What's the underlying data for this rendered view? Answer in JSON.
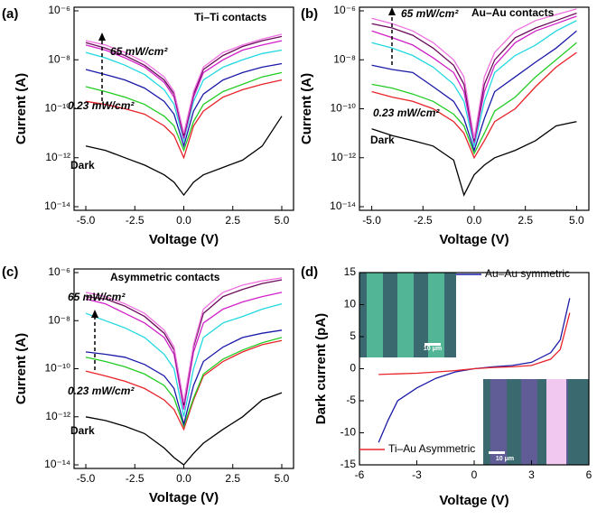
{
  "chart_data": [
    {
      "type": "line",
      "panel_label": "(a)",
      "xlabel": "Voltage (V)",
      "ylabel": "Current (A)",
      "log_y": true,
      "annotations": [
        "Ti–Ti contacts",
        "65 mW/cm²",
        "0.23 mW/cm²",
        "Dark"
      ],
      "xlim": [
        -5.6,
        5.6
      ],
      "ylim": [
        1e-14,
        1e-06
      ],
      "xticks": [
        {
          "value": -5,
          "label": "-5.0"
        },
        -2.5,
        {
          "value": 0,
          "label": "0.0"
        },
        2.5,
        {
          "value": 5,
          "label": "5.0"
        }
      ],
      "yticks": [
        {
          "value": 1e-06,
          "label": "10⁻⁶"
        },
        {
          "value": 1e-08,
          "label": "10⁻⁸"
        },
        {
          "value": 1e-10,
          "label": "10⁻¹⁰"
        },
        {
          "value": 1e-12,
          "label": "10⁻¹²"
        },
        {
          "value": 1e-14,
          "label": "10⁻¹⁴"
        }
      ],
      "x": [
        -5,
        -4,
        -3,
        -2,
        -1,
        -0.5,
        0,
        0.5,
        1,
        2,
        3,
        4,
        5
      ],
      "series": [
        {
          "color": "#000000",
          "values": [
            3e-12,
            2e-12,
            1e-12,
            5e-13,
            2e-13,
            1e-13,
            3e-14,
            1e-13,
            2e-13,
            4e-13,
            8e-13,
            3e-12,
            5e-11
          ]
        },
        {
          "color": "#e8232a",
          "values": [
            2e-10,
            1.5e-10,
            1e-10,
            6e-11,
            2e-11,
            8e-12,
            1e-12,
            2e-11,
            8e-11,
            3e-10,
            6e-10,
            1e-09,
            1.5e-09
          ]
        },
        {
          "color": "#22cc22",
          "values": [
            8e-10,
            5e-10,
            3e-10,
            1.5e-10,
            5e-11,
            2e-11,
            2e-12,
            3e-11,
            1.5e-10,
            5e-10,
            1e-09,
            2e-09,
            3e-09
          ]
        },
        {
          "color": "#1a1aa8",
          "values": [
            4e-09,
            2.5e-09,
            1.5e-09,
            7e-10,
            2e-10,
            6e-11,
            3e-12,
            8e-11,
            4e-10,
            1.5e-09,
            3e-09,
            5e-09,
            7e-09
          ]
        },
        {
          "color": "#22d8e0",
          "values": [
            2e-08,
            1.2e-08,
            6e-09,
            2.5e-09,
            6e-10,
            1.5e-10,
            5e-12,
            2e-10,
            1.5e-09,
            5e-09,
            1e-08,
            1.8e-08,
            2.5e-08
          ]
        },
        {
          "color": "#d020c8",
          "values": [
            4e-08,
            2.5e-08,
            1.2e-08,
            5e-09,
            1.2e-09,
            3e-10,
            6e-12,
            3e-10,
            3e-09,
            1e-08,
            2.5e-08,
            4e-08,
            6e-08
          ]
        },
        {
          "color": "#6a0a5a",
          "values": [
            5e-08,
            3e-08,
            1.5e-08,
            6e-09,
            1.5e-09,
            4e-10,
            8e-12,
            4e-10,
            4e-09,
            1.5e-08,
            3.5e-08,
            6e-08,
            9e-08
          ]
        },
        {
          "color": "#f070e0",
          "values": [
            6e-08,
            4e-08,
            2e-08,
            8e-09,
            2e-09,
            5e-10,
            1e-11,
            5e-10,
            5e-09,
            2e-08,
            4e-08,
            7e-08,
            1.1e-07
          ]
        }
      ]
    },
    {
      "type": "line",
      "panel_label": "(b)",
      "xlabel": "Voltage (V)",
      "ylabel": "Current (A)",
      "log_y": true,
      "annotations": [
        "Au–Au contacts",
        "65 mW/cm²",
        "0.23 mW/cm²",
        "Dark"
      ],
      "xlim": [
        -5.6,
        5.6
      ],
      "ylim": [
        1e-14,
        1e-06
      ],
      "xticks": [
        {
          "value": -5,
          "label": "-5.0"
        },
        -2.5,
        {
          "value": 0,
          "label": "0.0"
        },
        2.5,
        {
          "value": 5,
          "label": "5.0"
        }
      ],
      "yticks": [
        {
          "value": 1e-06,
          "label": "10⁻⁶"
        },
        {
          "value": 1e-08,
          "label": "10⁻⁸"
        },
        {
          "value": 1e-10,
          "label": "10⁻¹⁰"
        },
        {
          "value": 1e-12,
          "label": "10⁻¹²"
        },
        {
          "value": 1e-14,
          "label": "10⁻¹⁴"
        }
      ],
      "x": [
        -5,
        -4,
        -3,
        -2,
        -1,
        -0.5,
        0,
        0.5,
        1,
        2,
        3,
        4,
        5
      ],
      "series": [
        {
          "color": "#000000",
          "values": [
            1.5e-11,
            8e-12,
            5e-12,
            3e-12,
            8e-13,
            3e-14,
            2e-13,
            5e-13,
            1e-12,
            2e-12,
            5e-12,
            2e-11,
            3e-11
          ]
        },
        {
          "color": "#e8232a",
          "values": [
            5e-10,
            3e-10,
            2e-10,
            1e-10,
            3e-11,
            1e-11,
            1e-12,
            5e-12,
            3e-11,
            1e-10,
            8e-10,
            5e-09,
            2e-08
          ]
        },
        {
          "color": "#22cc22",
          "values": [
            1e-09,
            7e-10,
            4e-10,
            2e-10,
            6e-11,
            2e-11,
            1.5e-12,
            1e-11,
            8e-11,
            3e-10,
            2e-09,
            1e-08,
            5e-08
          ]
        },
        {
          "color": "#1a1aa8",
          "values": [
            6e-09,
            4e-09,
            3e-09,
            8e-10,
            2e-10,
            4e-11,
            2e-12,
            4e-11,
            5e-10,
            2e-09,
            8e-09,
            3e-08,
            1.5e-07
          ]
        },
        {
          "color": "#22d8e0",
          "values": [
            5e-08,
            3e-08,
            1.5e-08,
            5e-09,
            1e-09,
            2e-10,
            3e-12,
            2e-10,
            3e-09,
            1.5e-08,
            4e-08,
            1.5e-07,
            4e-07
          ]
        },
        {
          "color": "#d020c8",
          "values": [
            1.5e-07,
            8e-08,
            4e-08,
            1.2e-08,
            3e-09,
            5e-10,
            4e-12,
            5e-10,
            6e-09,
            5e-08,
            1.5e-07,
            3e-07,
            6e-07
          ]
        },
        {
          "color": "#6a0a5a",
          "values": [
            3e-07,
            2e-07,
            1e-07,
            3e-08,
            6e-09,
            1e-09,
            5e-12,
            1e-09,
            1e-08,
            8e-08,
            2e-07,
            4e-07,
            8e-07
          ]
        },
        {
          "color": "#f070e0",
          "values": [
            5e-07,
            3e-07,
            1.5e-07,
            5e-08,
            1e-08,
            2e-09,
            6e-12,
            2e-09,
            2e-08,
            1.5e-07,
            4e-07,
            7e-07,
            1.2e-06
          ]
        }
      ]
    },
    {
      "type": "line",
      "panel_label": "(c)",
      "xlabel": "Voltage (V)",
      "ylabel": "Current (A)",
      "log_y": true,
      "annotations": [
        "Asymmetric contacts",
        "65 mW/cm²",
        "0.23 mW/cm²",
        "Dark"
      ],
      "xlim": [
        -5.6,
        5.6
      ],
      "ylim": [
        1e-14,
        1e-06
      ],
      "xticks": [
        {
          "value": -5,
          "label": "-5.0"
        },
        -2.5,
        {
          "value": 0,
          "label": "0.0"
        },
        2.5,
        {
          "value": 5,
          "label": "5.0"
        }
      ],
      "yticks": [
        {
          "value": 1e-06,
          "label": "10⁻⁶"
        },
        {
          "value": 1e-08,
          "label": "10⁻⁸"
        },
        {
          "value": 1e-10,
          "label": "10⁻¹⁰"
        },
        {
          "value": 1e-12,
          "label": "10⁻¹²"
        },
        {
          "value": 1e-14,
          "label": "10⁻¹⁴"
        }
      ],
      "x": [
        -5,
        -4,
        -3,
        -2,
        -1,
        -0.5,
        0,
        0.5,
        1,
        2,
        3,
        4,
        5
      ],
      "series": [
        {
          "color": "#000000",
          "values": [
            1e-12,
            7e-13,
            4e-13,
            2e-13,
            5e-14,
            2e-14,
            1e-14,
            3e-14,
            8e-14,
            3e-13,
            1e-12,
            5e-12,
            1e-11
          ]
        },
        {
          "color": "#e8232a",
          "values": [
            8e-11,
            5e-11,
            3e-11,
            1.5e-11,
            5e-12,
            2e-12,
            3e-13,
            5e-12,
            5e-11,
            2e-10,
            5e-10,
            1e-09,
            1.5e-09
          ]
        },
        {
          "color": "#22cc22",
          "values": [
            3e-10,
            2e-10,
            1.2e-10,
            6e-11,
            2e-11,
            6e-12,
            4e-13,
            6e-12,
            6e-11,
            2.5e-10,
            6e-10,
            1.2e-09,
            2e-09
          ]
        },
        {
          "color": "#1a1aa8",
          "values": [
            5e-10,
            4e-10,
            3e-10,
            1.5e-10,
            5e-11,
            1.5e-11,
            5e-13,
            2e-11,
            2e-10,
            8e-10,
            2e-09,
            3e-09,
            4e-09
          ]
        },
        {
          "color": "#22d8e0",
          "values": [
            2e-08,
            1e-08,
            5e-09,
            2e-09,
            4e-10,
            1e-10,
            1e-12,
            1e-10,
            2e-09,
            8e-09,
            1.5e-08,
            3e-08,
            5e-08
          ]
        },
        {
          "color": "#d020c8",
          "values": [
            8e-08,
            5e-08,
            2e-08,
            8e-09,
            2e-09,
            4e-10,
            2e-12,
            5e-10,
            8e-09,
            3e-08,
            6e-08,
            1e-07,
            1.5e-07
          ]
        },
        {
          "color": "#6a0a5a",
          "values": [
            1e-07,
            8e-08,
            4e-08,
            1.5e-08,
            3e-09,
            6e-10,
            3e-12,
            8e-10,
            2e-08,
            1e-07,
            2e-07,
            3.5e-07,
            5e-07
          ]
        },
        {
          "color": "#f070e0",
          "values": [
            1.5e-07,
            1e-07,
            5e-08,
            2e-08,
            4e-09,
            8e-10,
            4e-12,
            1e-09,
            3e-08,
            1.5e-07,
            3e-07,
            4.5e-07,
            6e-07
          ]
        }
      ]
    },
    {
      "type": "line",
      "panel_label": "(d)",
      "xlabel": "Voltage (V)",
      "ylabel": "Dark current (pA)",
      "log_y": false,
      "annotations": [
        "10 μm",
        "10 μm"
      ],
      "xlim": [
        -6,
        6
      ],
      "ylim": [
        -15,
        15
      ],
      "xticks": [
        -6,
        -3,
        0,
        3,
        6
      ],
      "yticks": [
        -15,
        -10,
        -5,
        0,
        5,
        10,
        15
      ],
      "x": [
        -5,
        -4.5,
        -4,
        -3,
        -2,
        -1,
        0,
        1,
        2,
        3,
        4,
        4.5,
        5
      ],
      "series": [
        {
          "name": "Au–Au symmetric",
          "color": "#1a1aa8",
          "values": [
            -11.5,
            -8,
            -5,
            -3,
            -1.5,
            -0.5,
            0,
            0.3,
            0.5,
            1,
            2.5,
            4.5,
            11
          ]
        },
        {
          "name": "Ti–Au Asymmetric",
          "color": "#e8232a",
          "values": [
            -0.9,
            -0.85,
            -0.8,
            -0.7,
            -0.5,
            -0.3,
            0,
            0.2,
            0.3,
            0.5,
            1.5,
            3,
            8.7
          ]
        }
      ]
    }
  ]
}
